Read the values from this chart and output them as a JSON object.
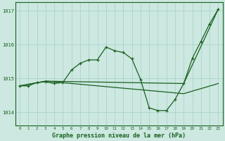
{
  "title": "Graphe pression niveau de la mer (hPa)",
  "bg_color": "#cce8e0",
  "grid_color": "#aad4cc",
  "line_color": "#1a6020",
  "x_labels": [
    "0",
    "1",
    "2",
    "3",
    "4",
    "5",
    "6",
    "7",
    "8",
    "9",
    "10",
    "11",
    "12",
    "13",
    "14",
    "15",
    "16",
    "17",
    "18",
    "19",
    "20",
    "21",
    "22",
    "23"
  ],
  "ylim": [
    1013.6,
    1017.25
  ],
  "yticks": [
    1014,
    1015,
    1016,
    1017
  ],
  "series1_x": [
    0,
    1,
    2,
    3,
    4,
    5,
    6,
    7,
    8,
    9,
    10,
    11,
    12,
    13,
    14,
    15,
    16,
    17,
    18,
    19,
    20,
    21,
    22,
    23
  ],
  "series1": [
    1014.78,
    1014.78,
    1014.88,
    1014.9,
    1014.85,
    1014.88,
    1015.25,
    1015.45,
    1015.55,
    1015.55,
    1015.93,
    1015.82,
    1015.77,
    1015.58,
    1014.97,
    1014.13,
    1014.05,
    1014.05,
    1014.38,
    1014.85,
    1015.6,
    1016.1,
    1016.62,
    1017.05
  ],
  "series2_x": [
    0,
    3,
    19,
    23
  ],
  "series2": [
    1014.78,
    1014.92,
    1014.85,
    1017.05
  ],
  "series3_x": [
    0,
    3,
    19,
    23
  ],
  "series3": [
    1014.78,
    1014.92,
    1014.55,
    1014.85
  ]
}
